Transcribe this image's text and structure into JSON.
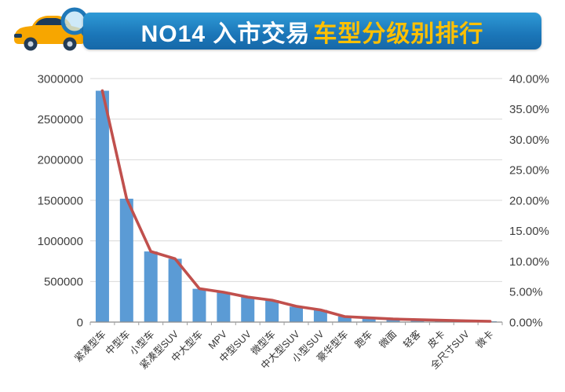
{
  "header": {
    "title_part1": "NO14 入市交易",
    "title_part2": "车型分级别排行",
    "banner_color": "#1b76b8",
    "accent_color": "#ffc000",
    "icon": "car-with-magnifier-icon"
  },
  "chart_data": {
    "type": "bar",
    "subtype": "bar-line-combo",
    "title": "NO14 入市交易车型分级别排行",
    "legend": "none",
    "grid": true,
    "categories": [
      "紧凑型车",
      "中型车",
      "小型车",
      "紧凑型SUV",
      "中大型车",
      "MPV",
      "中型SUV",
      "微型车",
      "中大型SUV",
      "小型SUV",
      "豪华型车",
      "跑车",
      "微面",
      "轻客",
      "皮卡",
      "全尺寸SUV",
      "微卡"
    ],
    "series": [
      {
        "type": "bar",
        "axis": "left",
        "color": "#5b9bd5",
        "values": [
          2850000,
          1520000,
          870000,
          780000,
          410000,
          370000,
          310000,
          270000,
          190000,
          150000,
          70000,
          50000,
          40000,
          30000,
          20000,
          15000,
          10000
        ]
      },
      {
        "type": "line",
        "axis": "right",
        "color": "#c0504d",
        "values": [
          38.0,
          20.3,
          11.6,
          10.4,
          5.5,
          4.9,
          4.1,
          3.6,
          2.6,
          2.0,
          0.9,
          0.7,
          0.5,
          0.4,
          0.3,
          0.2,
          0.13
        ]
      }
    ],
    "left_axis": {
      "min": 0,
      "max": 3000000,
      "step": 500000,
      "tick_labels": [
        "3000000",
        "2500000",
        "2000000",
        "1500000",
        "1000000",
        "500000",
        "0"
      ]
    },
    "right_axis": {
      "min": 0,
      "max": 40,
      "step": 5,
      "tick_labels": [
        "40.00%",
        "35.00%",
        "30.00%",
        "25.00%",
        "20.00%",
        "15.00%",
        "10.00%",
        "5.00%",
        "0.00%"
      ]
    }
  }
}
